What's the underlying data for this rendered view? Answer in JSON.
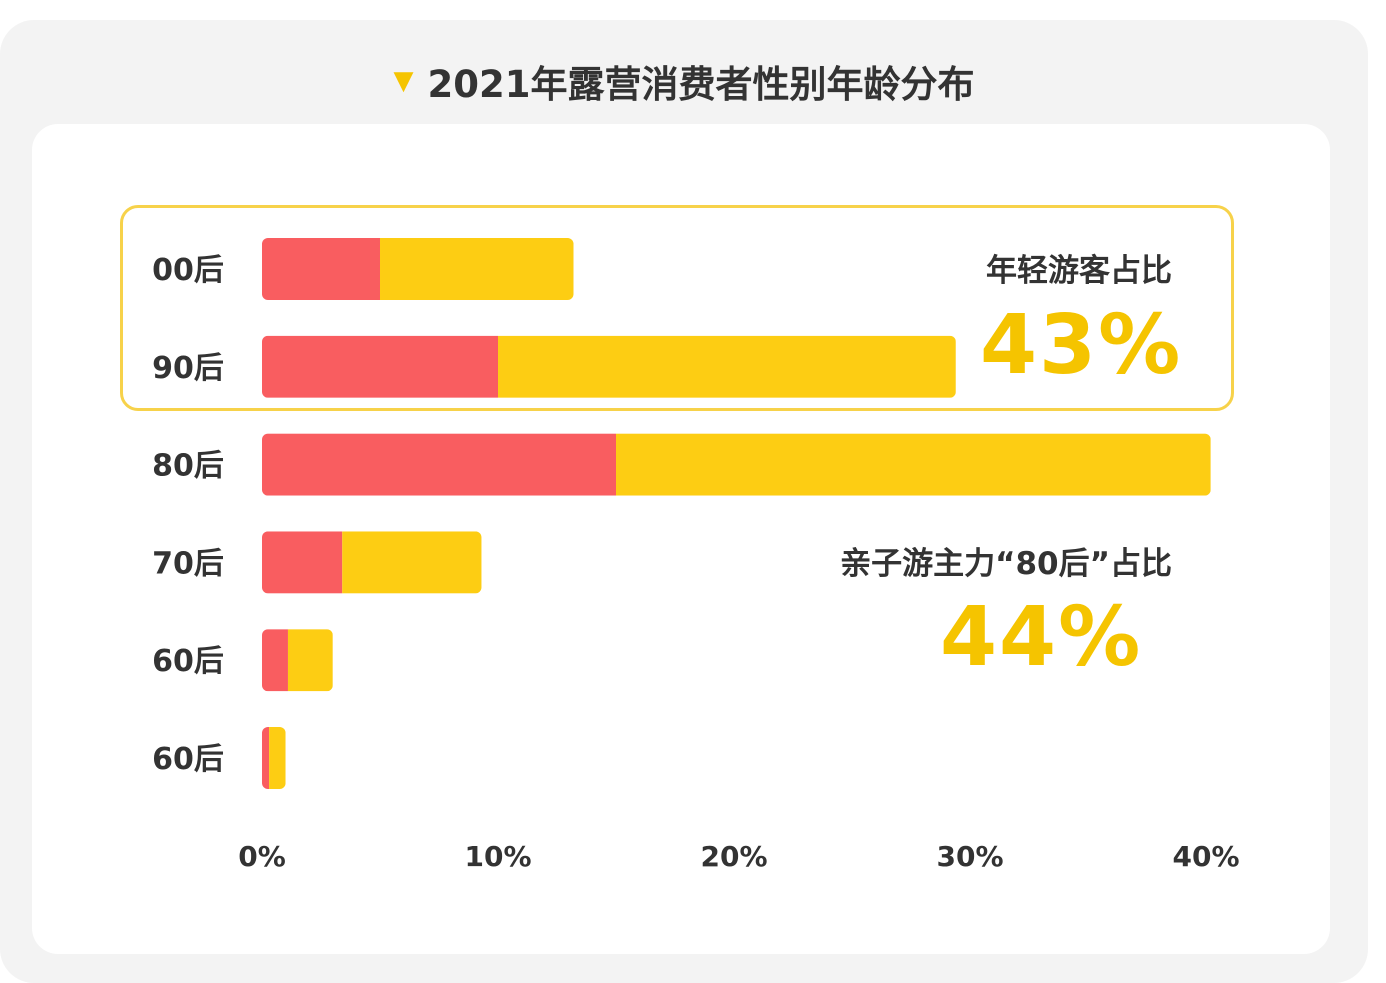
{
  "title": "2021年露营消费者性别年龄分布",
  "colors": {
    "female": "#f95d60",
    "male": "#fdcd13",
    "accent": "#f5c400",
    "text": "#333333"
  },
  "annotations": [
    {
      "label": "年轻游客占比",
      "value": "43%"
    },
    {
      "label": "亲子游主力“80后”占比",
      "value": "44%"
    }
  ],
  "chart_data": {
    "type": "bar",
    "orientation": "horizontal",
    "stacked": true,
    "categories": [
      "00后",
      "90后",
      "80后",
      "70后",
      "60后",
      "60后"
    ],
    "series": [
      {
        "values": [
          5.0,
          10.0,
          15.0,
          3.4,
          1.1,
          0.3
        ]
      },
      {
        "values": [
          8.2,
          19.4,
          25.2,
          5.9,
          1.9,
          0.7
        ]
      }
    ],
    "xlim": [
      0,
      40
    ],
    "xticks": [
      "0%",
      "10%",
      "20%",
      "30%",
      "40%"
    ],
    "xtick_values": [
      0,
      10,
      20,
      30,
      40
    ],
    "grid": false,
    "legend": "none"
  }
}
